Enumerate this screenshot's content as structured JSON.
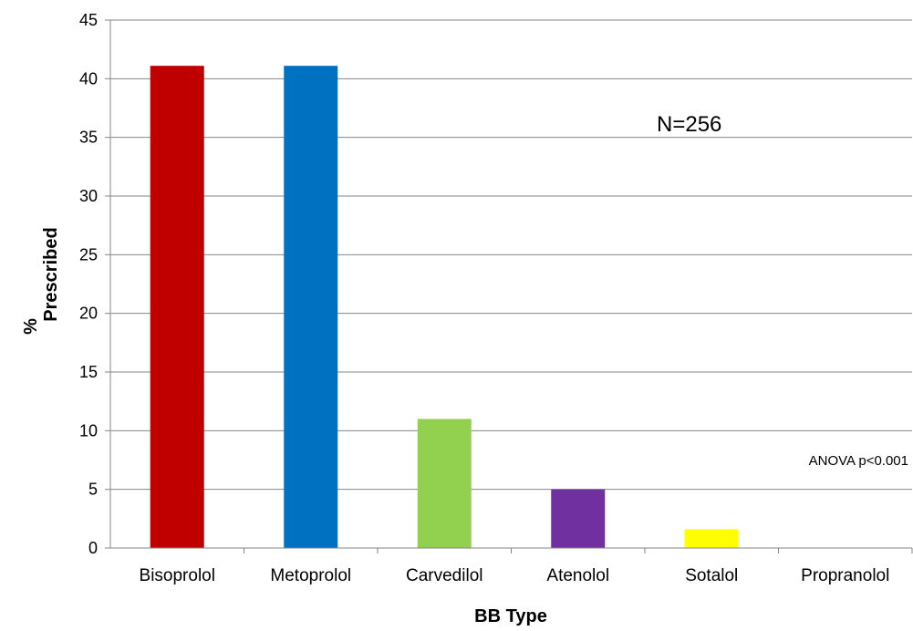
{
  "chart_data": {
    "type": "bar",
    "categories": [
      "Bisoprolol",
      "Metoprolol",
      "Carvedilol",
      "Atenolol",
      "Sotalol",
      "Propranolol"
    ],
    "values": [
      41.1,
      41.1,
      11.0,
      5.0,
      1.6,
      0
    ],
    "colors": [
      "#c00000",
      "#0070c0",
      "#92d050",
      "#7030a0",
      "#ffff00",
      "#ffffff"
    ],
    "xlabel": "BB Type",
    "ylabel_line1": "%",
    "ylabel_line2": "Prescribed",
    "ylim": [
      0,
      45
    ],
    "yticks": [
      "0",
      "5",
      "10",
      "15",
      "20",
      "25",
      "30",
      "35",
      "40",
      "45"
    ],
    "grid": true,
    "annotations": {
      "n": "N=256",
      "p": "ANOVA p<0.001"
    }
  }
}
